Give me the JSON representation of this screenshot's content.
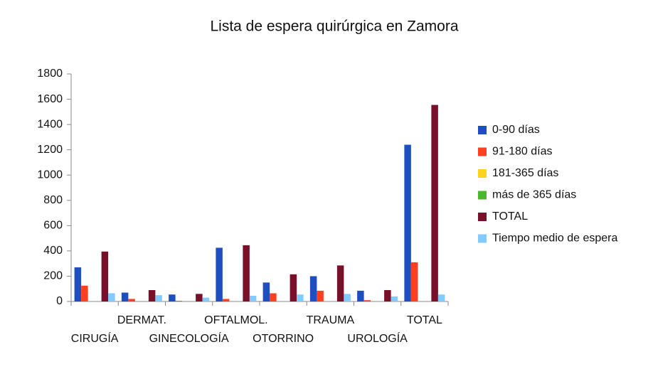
{
  "chart_data": {
    "type": "bar",
    "title": "Lista de espera quirúrgica en Zamora",
    "categories": [
      "CIRUGÍA",
      "DERMAT.",
      "GINECOLOGÍA",
      "OFTALMOL.",
      "OTORRINO",
      "TRAUMA",
      "UROLOGÍA",
      "TOTAL"
    ],
    "series": [
      {
        "name": "0-90 días",
        "color": "#1f4fbf",
        "values": [
          270,
          70,
          55,
          425,
          150,
          200,
          85,
          1240
        ]
      },
      {
        "name": "91-180 días",
        "color": "#ff4020",
        "values": [
          125,
          20,
          5,
          20,
          65,
          85,
          10,
          310
        ]
      },
      {
        "name": "181-365 días",
        "color": "#ffd320",
        "values": [
          0,
          0,
          0,
          0,
          0,
          0,
          0,
          0
        ]
      },
      {
        "name": "más de 365 días",
        "color": "#4ab82a",
        "values": [
          0,
          0,
          0,
          0,
          0,
          0,
          0,
          0
        ]
      },
      {
        "name": "TOTAL",
        "color": "#7a0f2a",
        "values": [
          395,
          90,
          60,
          445,
          215,
          285,
          90,
          1555
        ]
      },
      {
        "name": "Tiempo medio de espera",
        "color": "#83caff",
        "values": [
          65,
          50,
          30,
          45,
          55,
          60,
          40,
          55
        ]
      }
    ],
    "ylim": [
      0,
      1800
    ],
    "yticks": [
      0,
      200,
      400,
      600,
      800,
      1000,
      1200,
      1400,
      1600,
      1800
    ],
    "grid": false,
    "legend": "right"
  }
}
